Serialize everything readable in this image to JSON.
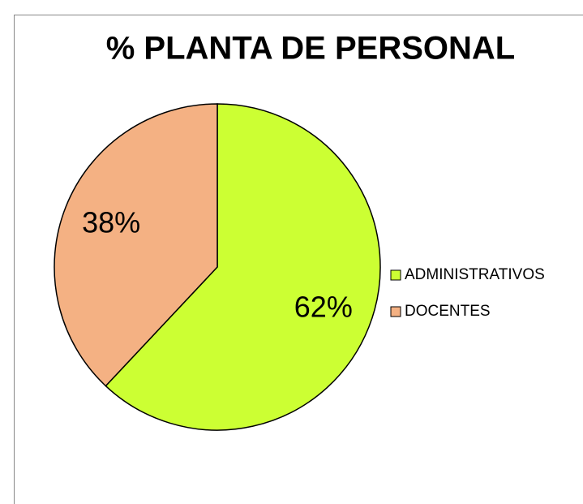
{
  "chart_data": {
    "type": "pie",
    "title": "% PLANTA DE PERSONAL",
    "categories": [
      "ADMINISTRATIVOS",
      "DOCENTES"
    ],
    "values": [
      62,
      38
    ],
    "value_labels": [
      "62%",
      "38%"
    ],
    "colors": [
      "#ccff33",
      "#f4b183"
    ],
    "legend": "right"
  }
}
